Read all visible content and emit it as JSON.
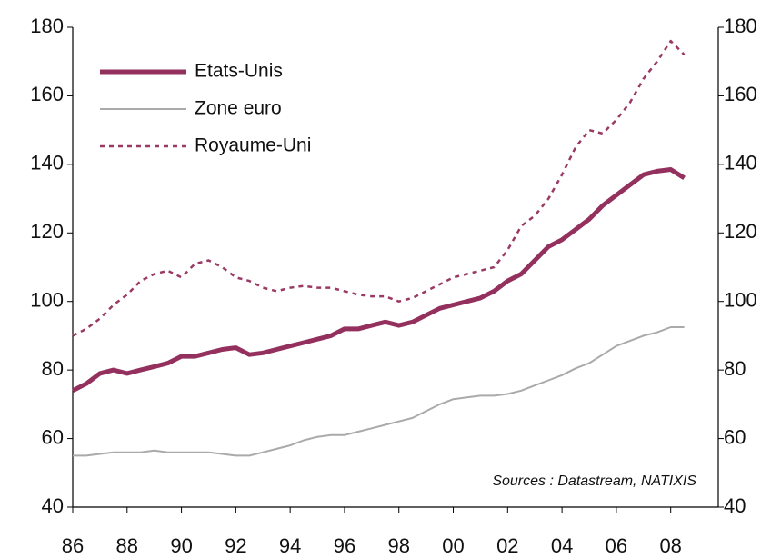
{
  "chart_data": {
    "type": "line",
    "annotation": "Sources : Datastream, NATIXIS",
    "x": [
      1986,
      1986.5,
      1987,
      1987.5,
      1988,
      1988.5,
      1989,
      1989.5,
      1990,
      1990.5,
      1991,
      1991.5,
      1992,
      1992.5,
      1993,
      1993.5,
      1994,
      1994.5,
      1995,
      1995.5,
      1996,
      1996.5,
      1997,
      1997.5,
      1998,
      1998.5,
      1999,
      1999.5,
      2000,
      2000.5,
      2001,
      2001.5,
      2002,
      2002.5,
      2003,
      2003.5,
      2004,
      2004.5,
      2005,
      2005.5,
      2006,
      2006.5,
      2007,
      2007.5,
      2008,
      2008.5
    ],
    "xlim": [
      1986,
      2009.75
    ],
    "xticks": [
      {
        "value": 1986,
        "label": "86"
      },
      {
        "value": 1988,
        "label": "88"
      },
      {
        "value": 1990,
        "label": "90"
      },
      {
        "value": 1992,
        "label": "92"
      },
      {
        "value": 1994,
        "label": "94"
      },
      {
        "value": 1996,
        "label": "96"
      },
      {
        "value": 1998,
        "label": "98"
      },
      {
        "value": 2000,
        "label": "00"
      },
      {
        "value": 2002,
        "label": "02"
      },
      {
        "value": 2004,
        "label": "04"
      },
      {
        "value": 2006,
        "label": "06"
      },
      {
        "value": 2008,
        "label": "08"
      }
    ],
    "ylim": [
      40,
      180
    ],
    "yticks": [
      40,
      60,
      80,
      100,
      120,
      140,
      160,
      180
    ],
    "y2lim": [
      40,
      180
    ],
    "y2ticks": [
      40,
      60,
      80,
      100,
      120,
      140,
      160,
      180
    ],
    "legend": "upper left",
    "series": [
      {
        "name": "Etats-Unis",
        "color": "#93305e",
        "style": "solid",
        "width": 5,
        "values": [
          74,
          76,
          79,
          80,
          79,
          80,
          81,
          82,
          84,
          84,
          85,
          86,
          86.5,
          84.5,
          85,
          86,
          87,
          88,
          89,
          90,
          92,
          92,
          93,
          94,
          93,
          94,
          96,
          98,
          99,
          100,
          101,
          103,
          106,
          108,
          112,
          116,
          118,
          121,
          124,
          128,
          131,
          134,
          137,
          138,
          138.5,
          136
        ]
      },
      {
        "name": "Zone euro",
        "color": "#aaaaaa",
        "style": "solid",
        "width": 2,
        "values": [
          55,
          55,
          55.5,
          56,
          56,
          56,
          56.5,
          56,
          56,
          56,
          56,
          55.5,
          55,
          55,
          56,
          57,
          58,
          59.5,
          60.5,
          61,
          61,
          62,
          63,
          64,
          65,
          66,
          68,
          70,
          71.5,
          72,
          72.5,
          72.5,
          73,
          74,
          75.5,
          77,
          78.5,
          80.5,
          82,
          84.5,
          87,
          88.5,
          90,
          91,
          92.5,
          92.5
        ]
      },
      {
        "name": "Royaume-Uni",
        "color": "#9a3a64",
        "style": "dashed",
        "width": 2.5,
        "values": [
          90,
          92,
          95,
          99,
          102,
          106,
          108,
          109,
          107,
          111,
          112,
          110,
          107,
          106,
          104,
          103,
          104,
          104.5,
          104,
          104,
          103,
          102,
          101.5,
          101.5,
          100,
          101,
          103,
          105,
          107,
          108,
          109,
          110,
          115,
          122,
          125,
          130,
          137,
          145,
          150,
          149,
          153,
          158,
          165,
          170,
          176,
          172
        ]
      }
    ]
  }
}
